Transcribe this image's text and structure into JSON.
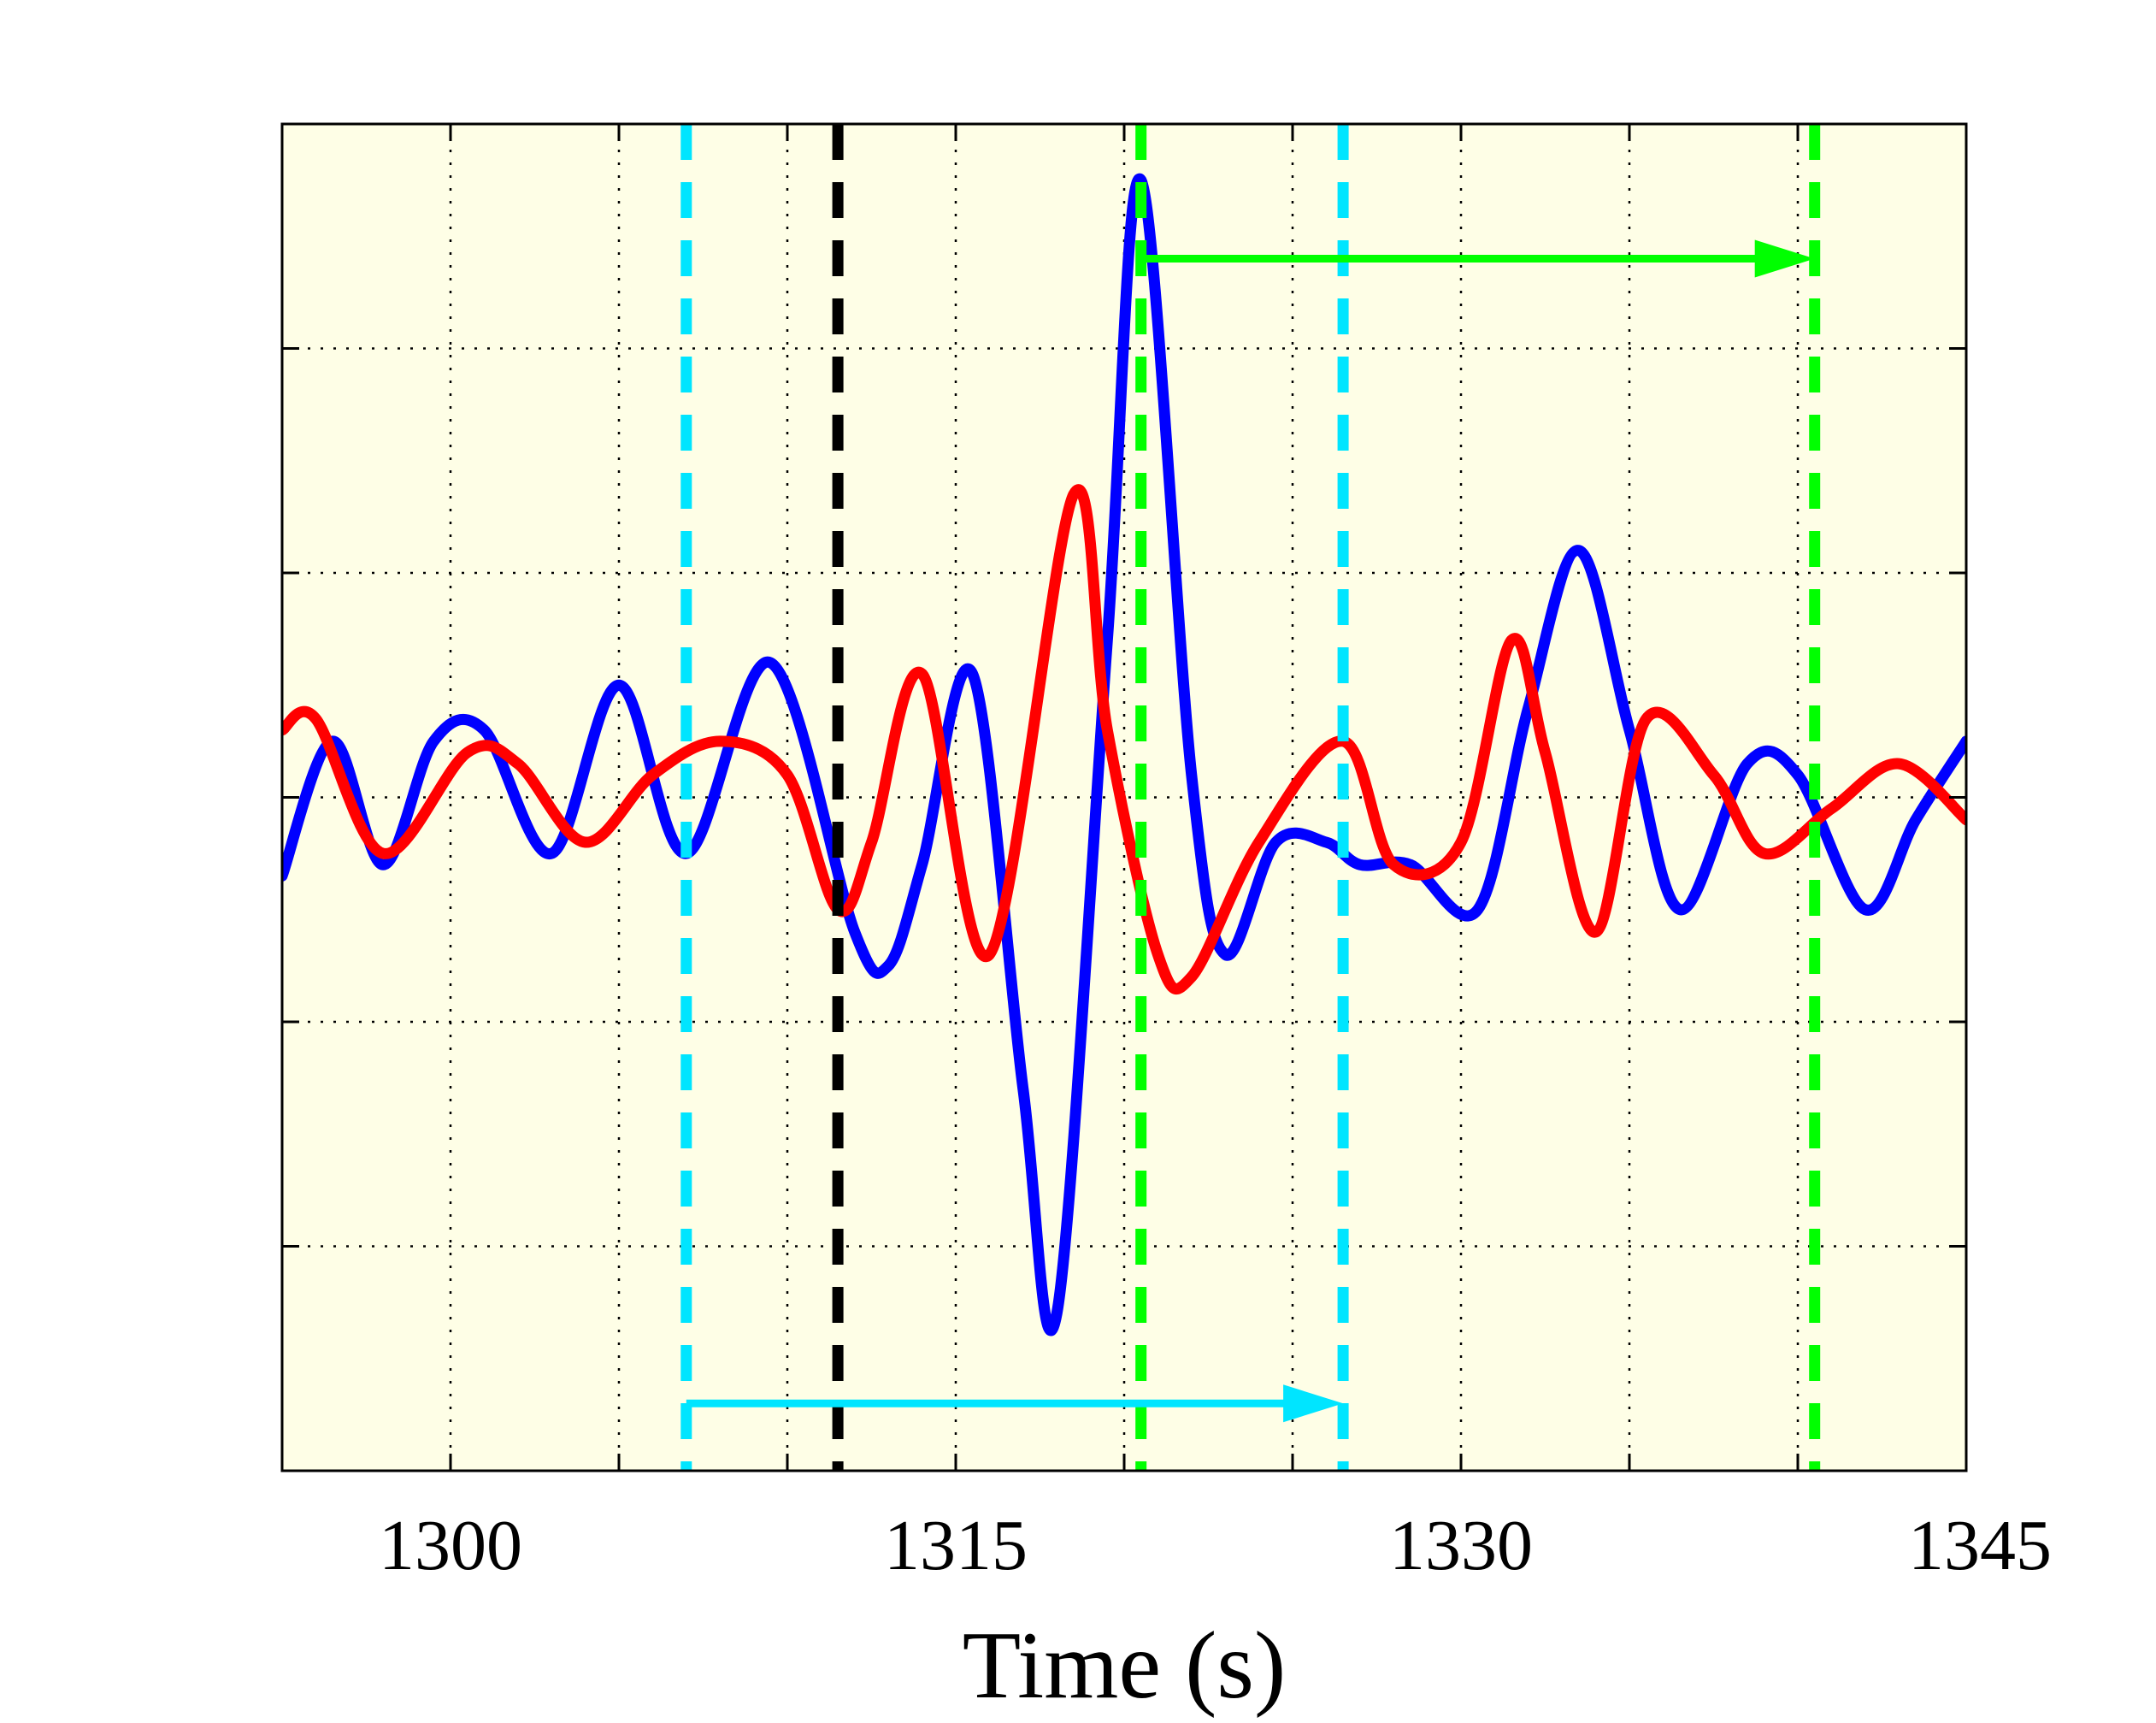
{
  "chart_data": {
    "type": "line",
    "title": "",
    "xlabel": "Time (s)",
    "ylabel": "",
    "xlim": [
      1295,
      1345
    ],
    "ylim": [
      -3,
      3
    ],
    "x_ticks": [
      1300,
      1315,
      1330,
      1345
    ],
    "x_ticklabels": [
      "1300",
      "1315",
      "1330",
      "1345"
    ],
    "x_gridlines": [
      1300,
      1305,
      1310,
      1315,
      1320,
      1325,
      1330,
      1335,
      1340,
      1345
    ],
    "y_gridlines": [
      -2,
      -1,
      0,
      1,
      2
    ],
    "grid": true,
    "plot_background": "#fefee6",
    "series": [
      {
        "color": "#0000ff",
        "x": [
          1295,
          1296.5,
          1298.0,
          1299.5,
          1301.0,
          1303.0,
          1305.0,
          1307.0,
          1309.5,
          1312.0,
          1313.0,
          1314.0,
          1315.5,
          1317.0,
          1318.0,
          1319.5,
          1320.5,
          1322.0,
          1323.0,
          1324.5,
          1326.0,
          1327.0,
          1328.5,
          1330.5,
          1332.0,
          1333.5,
          1335.0,
          1336.5,
          1338.5,
          1340.0,
          1342.0,
          1343.5,
          1345
        ],
        "y": [
          -0.35,
          0.25,
          -0.3,
          0.25,
          0.3,
          -0.25,
          0.5,
          -0.25,
          0.6,
          -0.6,
          -0.75,
          -0.3,
          0.55,
          -1.3,
          -2.3,
          0.7,
          2.75,
          0.1,
          -0.7,
          -0.2,
          -0.2,
          -0.3,
          -0.3,
          -0.5,
          0.4,
          1.1,
          0.3,
          -0.5,
          0.15,
          0.1,
          -0.5,
          -0.1,
          0.25
        ]
      },
      {
        "color": "#ff0000",
        "x": [
          1295,
          1296.0,
          1298.0,
          1300.5,
          1302.0,
          1304.0,
          1306.0,
          1308.0,
          1310.0,
          1311.5,
          1312.5,
          1314.0,
          1316.0,
          1318.5,
          1319.5,
          1321.0,
          1322.0,
          1324.0,
          1326.5,
          1328.0,
          1330.0,
          1331.5,
          1332.5,
          1334.0,
          1335.5,
          1337.5,
          1339.0,
          1341.0,
          1343.0,
          1345
        ],
        "y": [
          0.3,
          0.35,
          -0.25,
          0.2,
          0.15,
          -0.2,
          0.1,
          0.25,
          0.1,
          -0.5,
          -0.2,
          0.55,
          -0.7,
          1.35,
          0.3,
          -0.7,
          -0.8,
          -0.2,
          0.25,
          -0.3,
          -0.2,
          0.7,
          0.2,
          -0.6,
          0.35,
          0.1,
          -0.25,
          -0.05,
          0.15,
          -0.1
        ]
      }
    ],
    "vertical_markers": [
      {
        "x": 1307.0,
        "color": "#00e5ff",
        "style": "dashed"
      },
      {
        "x": 1326.5,
        "color": "#00e5ff",
        "style": "dashed"
      },
      {
        "x": 1311.5,
        "color": "#000000",
        "style": "dashed"
      },
      {
        "x": 1320.5,
        "color": "#00ff00",
        "style": "dashed"
      },
      {
        "x": 1340.5,
        "color": "#00ff00",
        "style": "dashed"
      }
    ],
    "arrows": [
      {
        "x_start": 1307.0,
        "x_end": 1326.5,
        "y": -2.7,
        "color": "#00e5ff"
      },
      {
        "x_start": 1320.5,
        "x_end": 1340.5,
        "y": 2.4,
        "color": "#00ff00"
      }
    ]
  }
}
